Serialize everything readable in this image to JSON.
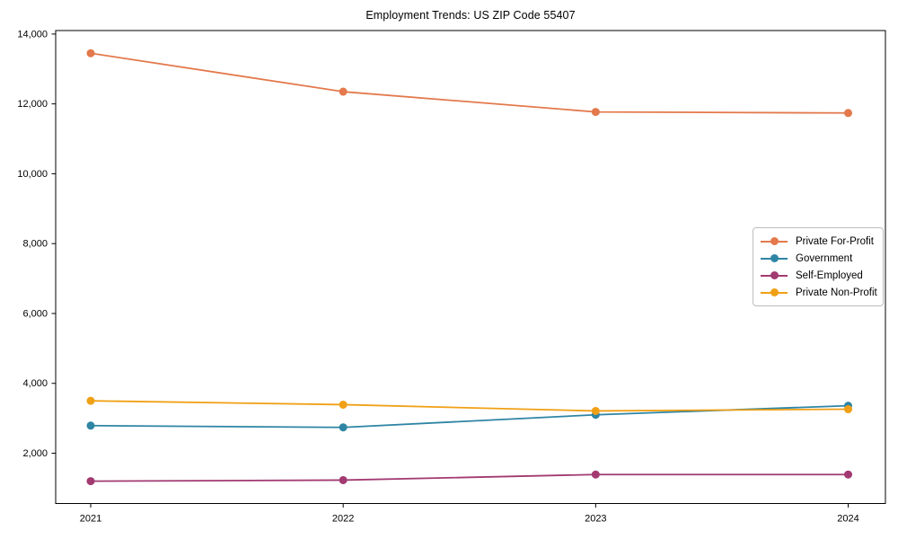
{
  "chart_data": {
    "type": "line",
    "title": "Employment Trends: US ZIP Code 55407",
    "xlabel": "",
    "ylabel": "",
    "categories": [
      "2021",
      "2022",
      "2023",
      "2024"
    ],
    "series": [
      {
        "name": "Private For-Profit",
        "color": "#E3794C",
        "values": [
          13450,
          12350,
          11770,
          11740
        ]
      },
      {
        "name": "Government",
        "color": "#2E85A4",
        "values": [
          2790,
          2740,
          3100,
          3360
        ]
      },
      {
        "name": "Self-Employed",
        "color": "#A23A71",
        "values": [
          1200,
          1230,
          1390,
          1390
        ]
      },
      {
        "name": "Private Non-Profit",
        "color": "#F0A015",
        "values": [
          3500,
          3390,
          3210,
          3260
        ]
      }
    ],
    "ylim": [
      560,
      14100
    ],
    "yticks": [
      2000,
      4000,
      6000,
      8000,
      10000,
      12000,
      14000
    ],
    "ytick_labels": [
      "2,000",
      "4,000",
      "6,000",
      "8,000",
      "10,000",
      "12,000",
      "14,000"
    ],
    "grid": false,
    "legend_position": "center right",
    "axis_color": "#000000"
  }
}
